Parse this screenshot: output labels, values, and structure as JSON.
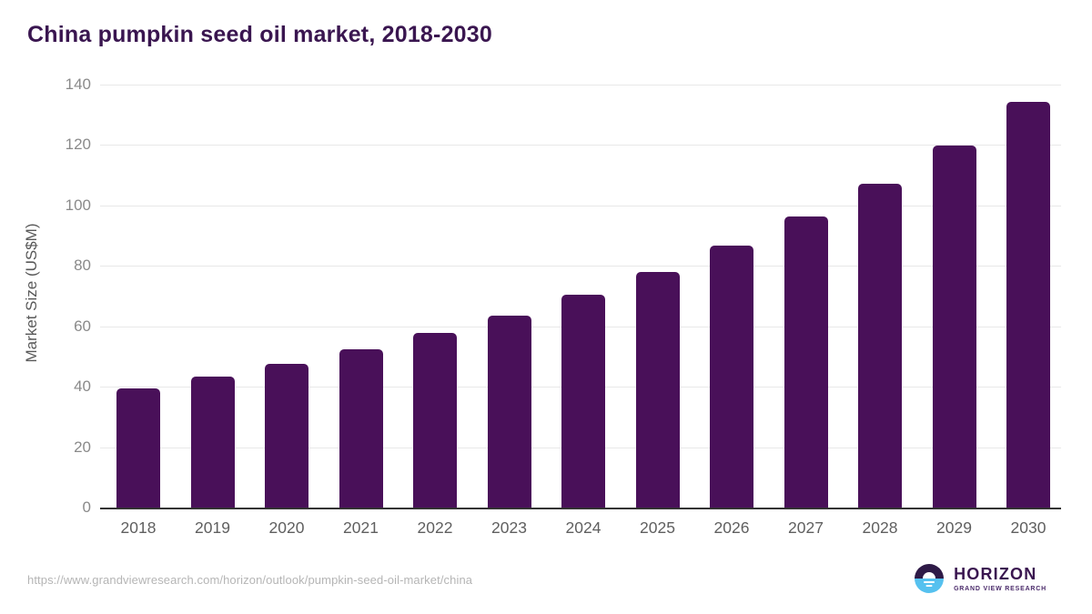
{
  "header": {
    "title": "China pumpkin seed oil market, 2018-2030"
  },
  "chart_data": {
    "type": "bar",
    "title": "China pumpkin seed oil market, 2018-2030",
    "categories": [
      "2018",
      "2019",
      "2020",
      "2021",
      "2022",
      "2023",
      "2024",
      "2025",
      "2026",
      "2027",
      "2028",
      "2029",
      "2030"
    ],
    "values": [
      39.4,
      43.5,
      47.6,
      52.4,
      57.7,
      63.5,
      70.6,
      78.0,
      86.7,
      96.2,
      107.1,
      119.8,
      134.2
    ],
    "xlabel": "",
    "ylabel": "Market Size (US$M)",
    "ylim": [
      0,
      140
    ],
    "yticks": [
      0,
      20,
      40,
      60,
      80,
      100,
      120,
      140
    ],
    "grid": true,
    "legend": false,
    "bar_color": "#491059"
  },
  "footer": {
    "source_url": "https://www.grandviewresearch.com/horizon/outlook/pumpkin-seed-oil-market/china",
    "logo": {
      "brand": "HORIZON",
      "subbrand": "GRAND VIEW RESEARCH"
    }
  },
  "colors": {
    "background": "#ffffff",
    "title": "#3a1650",
    "bar": "#491059",
    "gridline": "#e8e8e8",
    "axis_line": "#333333",
    "x_tick": "#5f5f5f",
    "y_tick": "#8a8a8a",
    "y_axis_title": "#595959",
    "url_text": "#b5b5b5",
    "logo_dark": "#2e1a47",
    "logo_blue": "#56c1ef",
    "logo_text": "#3a1650",
    "logo_subtext": "#4a2a6a"
  }
}
